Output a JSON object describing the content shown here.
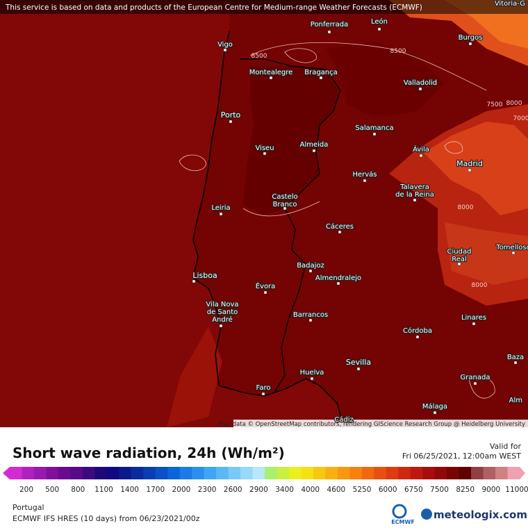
{
  "header": {
    "attribution": "This service is based on data and products of the European Centre for Medium-range Weather Forecasts (ECMWF)"
  },
  "map": {
    "cities": [
      "Vitoria-G",
      "Ponferrada",
      "León",
      "Burgos",
      "Vigo",
      "Montealegre",
      "Bragança",
      "Valladolid",
      "Porto",
      "Salamanca",
      "Almeida",
      "Viseu",
      "Ávila",
      "Madrid",
      "Hervás",
      [
        "Talavera",
        "de la Reina"
      ],
      [
        "Castelo",
        "Branco"
      ],
      "Leiria",
      "Cáceres",
      [
        "Ciudad",
        "Real"
      ],
      "Tomelloso",
      "Badajoz",
      "Almendralejo",
      "Lisboa",
      "Évora",
      [
        "Vila Nova",
        "de Santo",
        "André"
      ],
      "Barrancos",
      "Linares",
      "Córdoba",
      "Sevilla",
      "Baza",
      "Huelva",
      "Granada",
      "Faro",
      "Málaga",
      "Alm",
      "Cádiz"
    ],
    "contour_labels": [
      "8500",
      "8500",
      "7500",
      "8000",
      "7000",
      "8000",
      "8000"
    ],
    "credits": "Map data © OpenStreetMap contributors, rendering GIScience Research Group @ Heidelberg University"
  },
  "legend": {
    "title": "Short wave radiation, 24h (Wh/m²)",
    "valid_label": "Valid for",
    "valid_time": "Fri 06/25/2021, 12:00am WEST",
    "ticks": [
      200,
      500,
      800,
      1100,
      1400,
      1700,
      2000,
      2300,
      2600,
      2900,
      3400,
      4000,
      4600,
      5250,
      6000,
      6750,
      7500,
      8250,
      9000,
      11000
    ],
    "colors": [
      "#d42ad4",
      "#b020c0",
      "#9a18b0",
      "#80109c",
      "#6a0a90",
      "#580a8a",
      "#3c0a80",
      "#1e0878",
      "#100a82",
      "#0a1a8c",
      "#0a2aa0",
      "#0a3cb4",
      "#0a50c8",
      "#0a64dc",
      "#1a7ae8",
      "#2a90f0",
      "#40a6f4",
      "#5ab8f6",
      "#78c8f8",
      "#98d8fa",
      "#b8e6fa",
      "#a8f070",
      "#c8f040",
      "#e8f020",
      "#f8e010",
      "#f8c810",
      "#f8b010",
      "#f89810",
      "#f88010",
      "#f06810",
      "#e85010",
      "#e03a10",
      "#d02810",
      "#c01810",
      "#a80c0c",
      "#900808",
      "#780404",
      "#600000",
      "#904040",
      "#b06060",
      "#d08080",
      "#f0a0b0"
    ]
  },
  "footer": {
    "region": "Portugal",
    "model": "ECMWF IFS HRES (10 days) from 06/23/2021/00z",
    "ecmwf": "ECMWF",
    "brand": "meteologix.com"
  }
}
